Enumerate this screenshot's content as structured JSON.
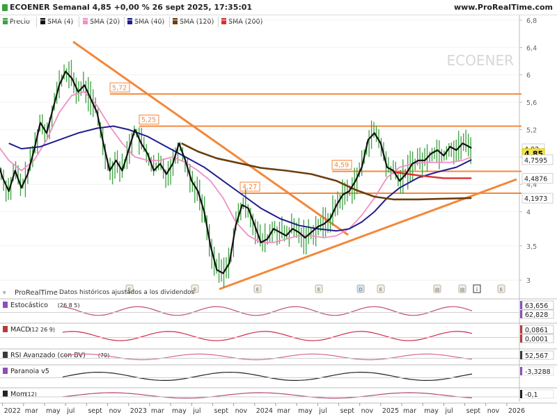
{
  "header": {
    "title": "ECOENER Semanal 4,85 +0,00 % 26 sept 2025, 17:35:01",
    "site": "www.ProRealTime.com"
  },
  "legend": {
    "price": "Precio",
    "sma4": "SMA (4)",
    "sma20": "SMA (20)",
    "sma40": "SMA (40)",
    "sma120": "SMA (120)",
    "sma200": "SMA (200)"
  },
  "colors": {
    "price": "#39a13d",
    "sma4": "#111111",
    "sma20": "#f28fc4",
    "sma40": "#1f1c8f",
    "sma120": "#6b3e0c",
    "sma200": "#d93030",
    "trendline": "#f4873a"
  },
  "watermark": "ECOENER",
  "source_note": "ProRealTime",
  "data_note": "Datos históricos ajustados a los dividendos",
  "chart_data": {
    "type": "line",
    "ylim": [
      2.95,
      6.85
    ],
    "y_ticks": [
      "6,8",
      "6,4",
      "6",
      "5,6",
      "5,2",
      "4,8",
      "4,4",
      "4",
      "3,5",
      "3"
    ],
    "x_ticks": [
      "2022",
      "mar",
      "may",
      "jul",
      "sept",
      "nov",
      "2023",
      "mar",
      "may",
      "jul",
      "sept",
      "nov",
      "2024",
      "mar",
      "may",
      "jul",
      "sept",
      "nov",
      "2025",
      "mar",
      "may",
      "jul",
      "sept",
      "nov",
      "2026"
    ],
    "levels": [
      {
        "label": "5,72",
        "value": 5.72
      },
      {
        "label": "5,25",
        "value": 5.25
      },
      {
        "label": "4,59",
        "value": 4.59
      },
      {
        "label": "4,27",
        "value": 4.27
      }
    ],
    "price_tags": [
      {
        "label": "4,92",
        "value": 4.92,
        "bg": "#ffffff",
        "fg": "#222222"
      },
      {
        "label": "4,85",
        "value": 4.85,
        "bg": "#f7e34a",
        "fg": "#000000"
      },
      {
        "label": "4,7595",
        "value": 4.7595,
        "bg": "#ffffff",
        "fg": "#222222"
      },
      {
        "label": "4,4876",
        "value": 4.4876,
        "bg": "#ffffff",
        "fg": "#222222"
      },
      {
        "label": "4,1973",
        "value": 4.1973,
        "bg": "#ffffff",
        "fg": "#222222"
      }
    ],
    "series": [
      {
        "key": "sma20",
        "points": [
          [
            2021.95,
            5.0
          ],
          [
            2022.05,
            4.75
          ],
          [
            2022.15,
            4.6
          ],
          [
            2022.25,
            4.75
          ],
          [
            2022.35,
            5.05
          ],
          [
            2022.45,
            5.45
          ],
          [
            2022.55,
            5.7
          ],
          [
            2022.65,
            5.75
          ],
          [
            2022.75,
            5.55
          ],
          [
            2022.85,
            5.25
          ],
          [
            2022.95,
            5.0
          ],
          [
            2023.05,
            4.8
          ],
          [
            2023.15,
            4.75
          ],
          [
            2023.25,
            4.75
          ],
          [
            2023.35,
            4.8
          ],
          [
            2023.45,
            4.72
          ],
          [
            2023.55,
            4.6
          ],
          [
            2023.65,
            4.45
          ],
          [
            2023.75,
            4.2
          ],
          [
            2023.85,
            3.85
          ],
          [
            2023.95,
            3.65
          ],
          [
            2024.05,
            3.55
          ],
          [
            2024.15,
            3.55
          ],
          [
            2024.25,
            3.6
          ],
          [
            2024.35,
            3.65
          ],
          [
            2024.45,
            3.65
          ],
          [
            2024.55,
            3.62
          ],
          [
            2024.65,
            3.65
          ],
          [
            2024.75,
            3.75
          ],
          [
            2024.85,
            3.95
          ],
          [
            2024.95,
            4.2
          ],
          [
            2025.05,
            4.5
          ],
          [
            2025.15,
            4.65
          ],
          [
            2025.25,
            4.7
          ],
          [
            2025.35,
            4.72
          ],
          [
            2025.45,
            4.72
          ],
          [
            2025.55,
            4.72
          ],
          [
            2025.65,
            4.75
          ],
          [
            2025.72,
            4.8
          ]
        ]
      },
      {
        "key": "sma40",
        "points": [
          [
            2022.05,
            5.0
          ],
          [
            2022.15,
            4.92
          ],
          [
            2022.3,
            4.95
          ],
          [
            2022.45,
            5.05
          ],
          [
            2022.6,
            5.15
          ],
          [
            2022.75,
            5.22
          ],
          [
            2022.88,
            5.25
          ],
          [
            2023.0,
            5.2
          ],
          [
            2023.15,
            5.1
          ],
          [
            2023.3,
            4.95
          ],
          [
            2023.45,
            4.8
          ],
          [
            2023.6,
            4.65
          ],
          [
            2023.75,
            4.45
          ],
          [
            2023.9,
            4.25
          ],
          [
            2024.05,
            4.05
          ],
          [
            2024.2,
            3.9
          ],
          [
            2024.35,
            3.8
          ],
          [
            2024.5,
            3.75
          ],
          [
            2024.65,
            3.72
          ],
          [
            2024.75,
            3.75
          ],
          [
            2024.85,
            3.85
          ],
          [
            2024.95,
            4.0
          ],
          [
            2025.05,
            4.2
          ],
          [
            2025.15,
            4.35
          ],
          [
            2025.3,
            4.5
          ],
          [
            2025.45,
            4.58
          ],
          [
            2025.6,
            4.65
          ],
          [
            2025.72,
            4.76
          ]
        ]
      },
      {
        "key": "sma120",
        "points": [
          [
            2023.42,
            5.0
          ],
          [
            2023.55,
            4.88
          ],
          [
            2023.7,
            4.78
          ],
          [
            2023.9,
            4.7
          ],
          [
            2024.05,
            4.64
          ],
          [
            2024.25,
            4.6
          ],
          [
            2024.45,
            4.55
          ],
          [
            2024.65,
            4.45
          ],
          [
            2024.8,
            4.32
          ],
          [
            2024.95,
            4.22
          ],
          [
            2025.1,
            4.18
          ],
          [
            2025.3,
            4.18
          ],
          [
            2025.5,
            4.19
          ],
          [
            2025.72,
            4.2
          ]
        ]
      },
      {
        "key": "sma200",
        "points": [
          [
            2025.1,
            4.58
          ],
          [
            2025.3,
            4.53
          ],
          [
            2025.5,
            4.49
          ],
          [
            2025.72,
            4.49
          ]
        ]
      },
      {
        "key": "sma4",
        "points": [
          [
            2021.95,
            4.8
          ],
          [
            2022.0,
            4.5
          ],
          [
            2022.05,
            4.3
          ],
          [
            2022.1,
            4.6
          ],
          [
            2022.15,
            4.35
          ],
          [
            2022.2,
            4.55
          ],
          [
            2022.25,
            4.9
          ],
          [
            2022.3,
            5.3
          ],
          [
            2022.35,
            5.15
          ],
          [
            2022.4,
            5.5
          ],
          [
            2022.45,
            5.85
          ],
          [
            2022.5,
            6.05
          ],
          [
            2022.55,
            5.95
          ],
          [
            2022.6,
            5.75
          ],
          [
            2022.65,
            5.85
          ],
          [
            2022.7,
            5.65
          ],
          [
            2022.75,
            5.45
          ],
          [
            2022.8,
            5.0
          ],
          [
            2022.85,
            4.6
          ],
          [
            2022.9,
            4.75
          ],
          [
            2022.95,
            4.6
          ],
          [
            2023.0,
            4.9
          ],
          [
            2023.05,
            5.2
          ],
          [
            2023.1,
            5.0
          ],
          [
            2023.15,
            4.85
          ],
          [
            2023.2,
            4.6
          ],
          [
            2023.25,
            4.7
          ],
          [
            2023.3,
            4.55
          ],
          [
            2023.35,
            4.7
          ],
          [
            2023.4,
            5.0
          ],
          [
            2023.45,
            4.75
          ],
          [
            2023.5,
            4.45
          ],
          [
            2023.55,
            4.3
          ],
          [
            2023.6,
            4.0
          ],
          [
            2023.65,
            3.5
          ],
          [
            2023.7,
            3.15
          ],
          [
            2023.75,
            3.1
          ],
          [
            2023.8,
            3.25
          ],
          [
            2023.85,
            3.8
          ],
          [
            2023.9,
            4.1
          ],
          [
            2023.95,
            4.05
          ],
          [
            2024.0,
            3.8
          ],
          [
            2024.05,
            3.55
          ],
          [
            2024.1,
            3.6
          ],
          [
            2024.15,
            3.75
          ],
          [
            2024.2,
            3.7
          ],
          [
            2024.25,
            3.65
          ],
          [
            2024.3,
            3.75
          ],
          [
            2024.35,
            3.7
          ],
          [
            2024.4,
            3.62
          ],
          [
            2024.45,
            3.7
          ],
          [
            2024.5,
            3.78
          ],
          [
            2024.55,
            3.82
          ],
          [
            2024.6,
            3.9
          ],
          [
            2024.65,
            4.1
          ],
          [
            2024.7,
            4.25
          ],
          [
            2024.75,
            4.3
          ],
          [
            2024.8,
            4.45
          ],
          [
            2024.85,
            4.65
          ],
          [
            2024.9,
            5.05
          ],
          [
            2024.95,
            5.15
          ],
          [
            2025.0,
            5.0
          ],
          [
            2025.05,
            4.65
          ],
          [
            2025.1,
            4.6
          ],
          [
            2025.15,
            4.45
          ],
          [
            2025.2,
            4.55
          ],
          [
            2025.25,
            4.7
          ],
          [
            2025.3,
            4.75
          ],
          [
            2025.35,
            4.75
          ],
          [
            2025.4,
            4.85
          ],
          [
            2025.45,
            4.9
          ],
          [
            2025.5,
            4.82
          ],
          [
            2025.55,
            4.95
          ],
          [
            2025.6,
            4.9
          ],
          [
            2025.65,
            5.0
          ],
          [
            2025.72,
            4.93
          ]
        ]
      }
    ]
  },
  "indicators": [
    {
      "label": "Estocástico",
      "params": "(26 8 5)",
      "swatch": "#8d4fb8",
      "values": [
        "63,656",
        "62,828"
      ]
    },
    {
      "label": "MACD",
      "params": "(12 26 9)",
      "swatch": "#b83a3a",
      "values": [
        "0,0861",
        "0,0001"
      ]
    },
    {
      "label": "RSI Avanzado (con BV)",
      "params": "(70)",
      "swatch": "#3a3a3a",
      "values": [
        "52,567"
      ]
    },
    {
      "label": "Paranoia v5",
      "params": "",
      "swatch": "#8d4fb8",
      "values": [
        "-3,3288"
      ]
    },
    {
      "label": "Mom",
      "params": "(12)",
      "swatch": "#222222",
      "values": [
        "-0,1"
      ]
    }
  ]
}
